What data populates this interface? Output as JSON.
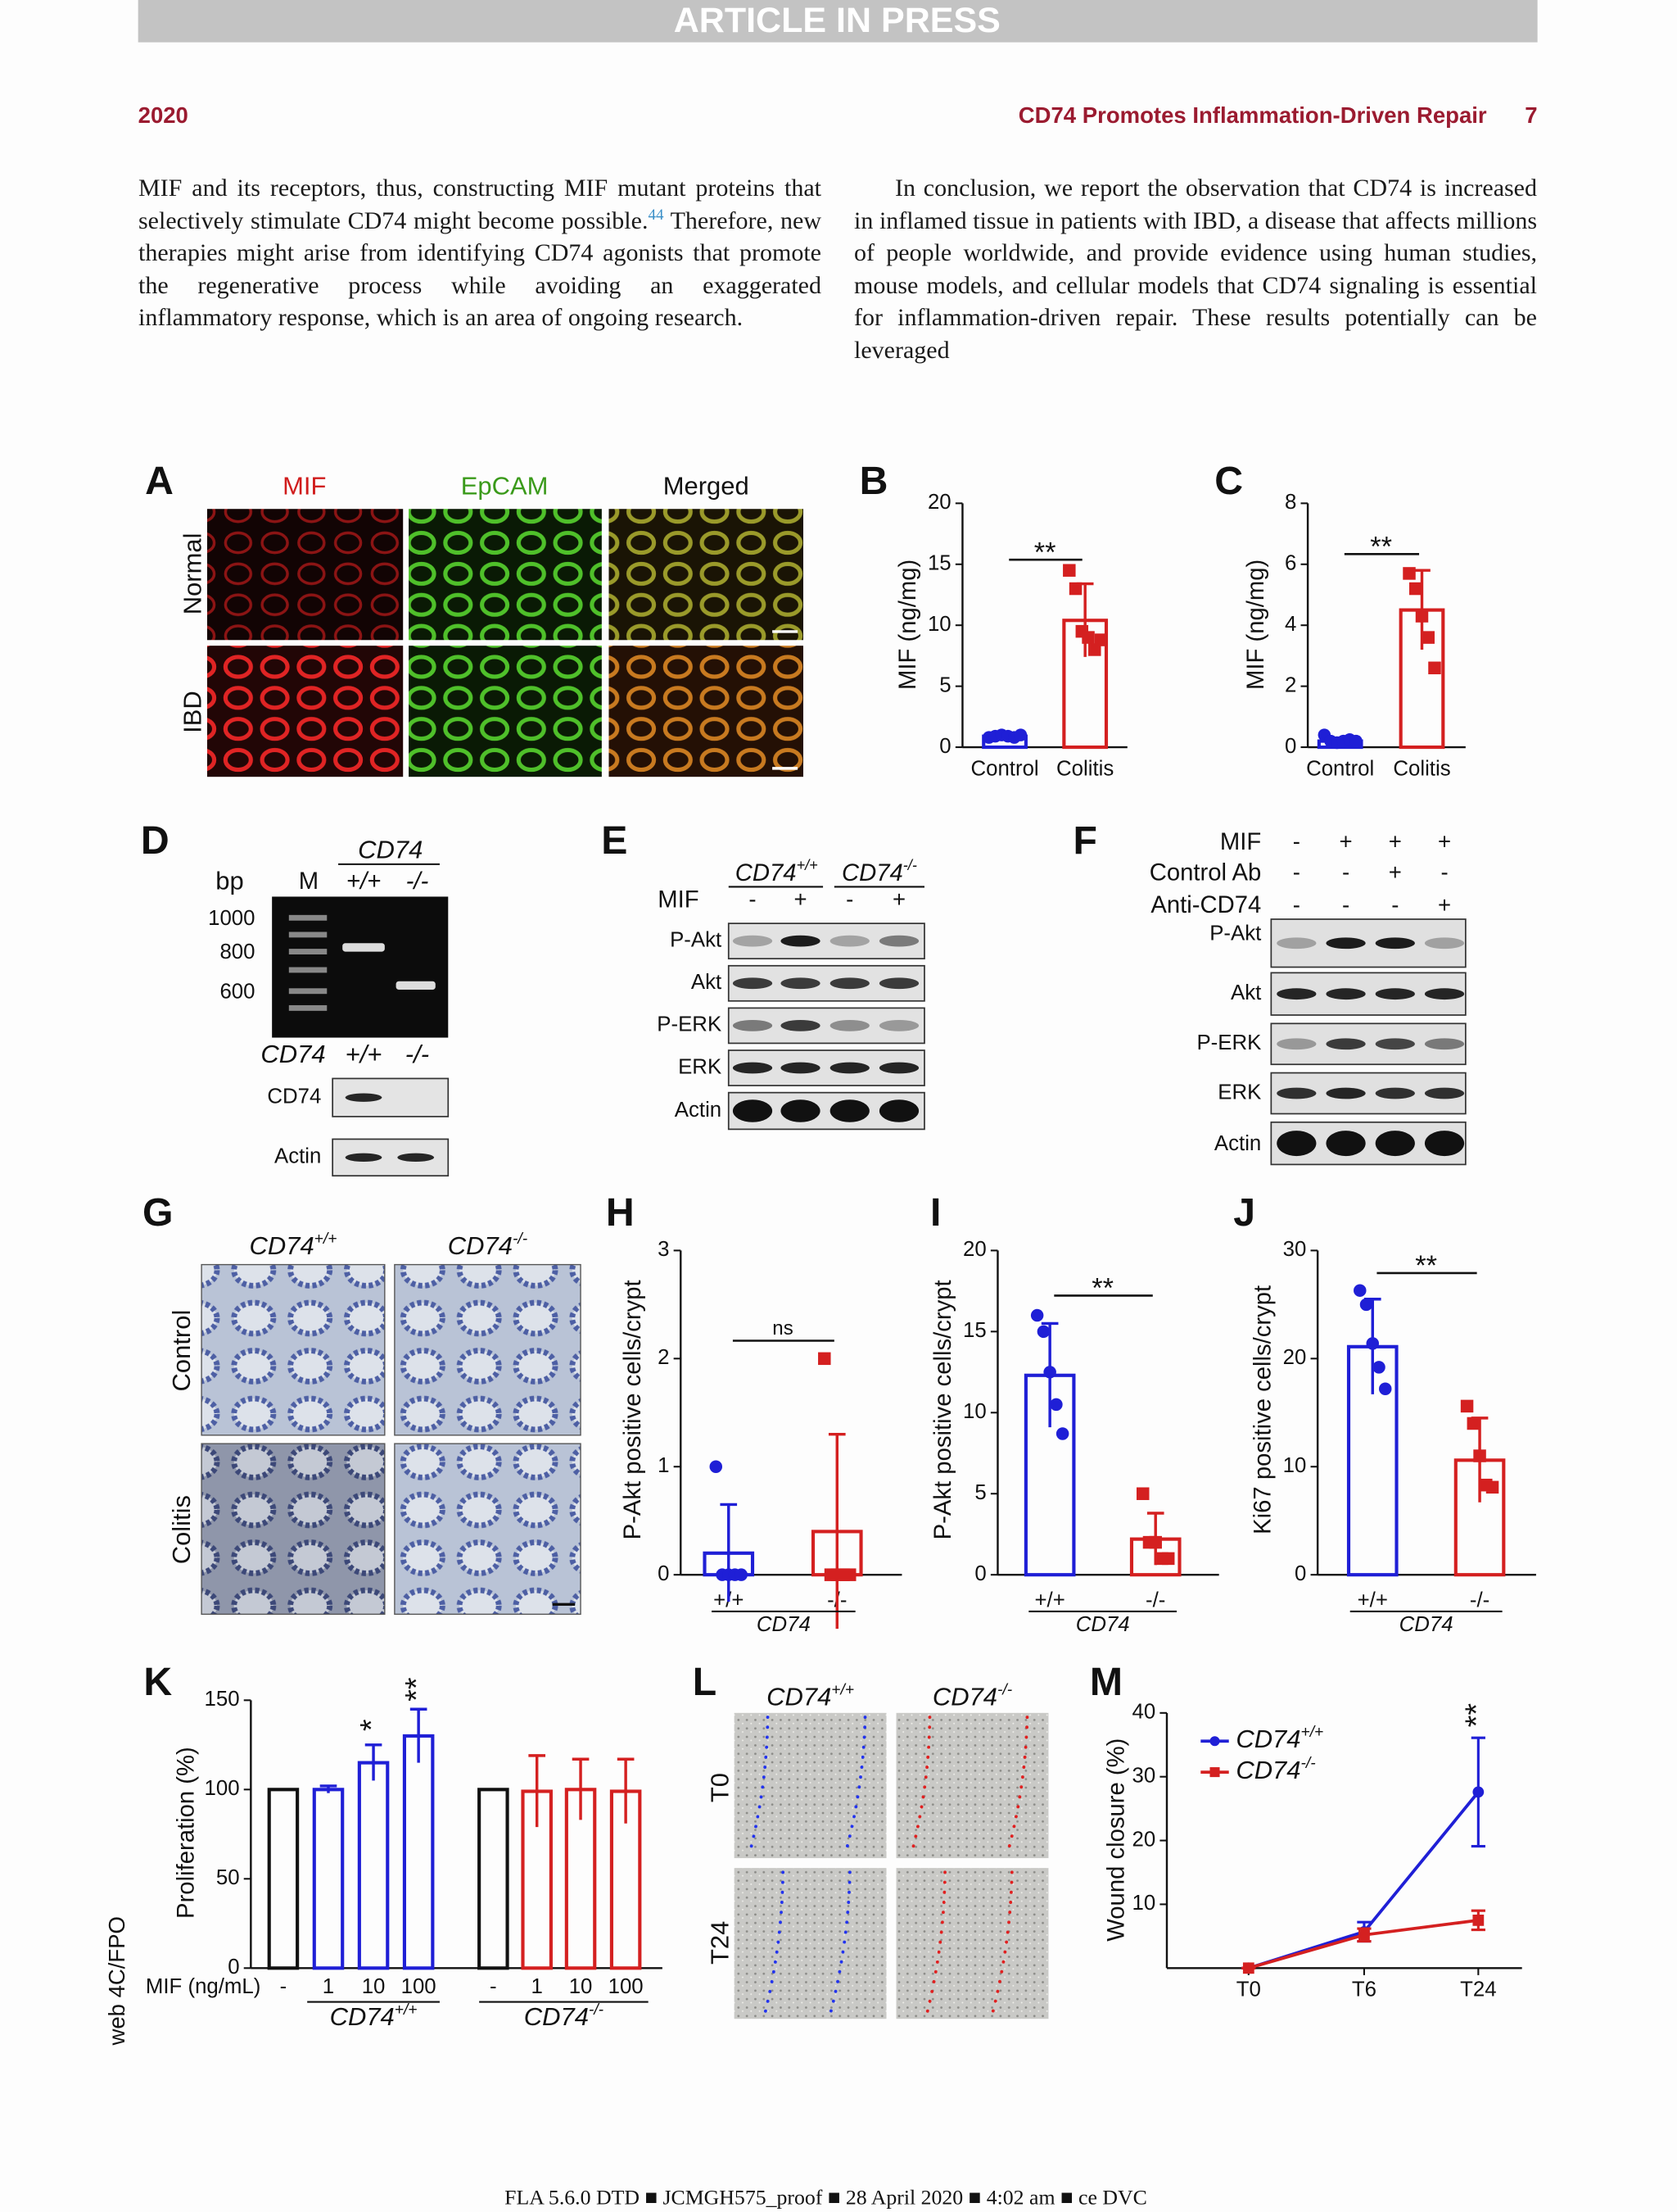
{
  "banner": "ARTICLE IN PRESS",
  "header": {
    "year": "2020",
    "title": "CD74 Promotes Inflammation-Driven Repair",
    "page": "7"
  },
  "text": {
    "left": {
      "before": "MIF and its receptors, thus, constructing MIF mutant proteins that selectively stimulate CD74 might become possible.",
      "ref": "44",
      "after": " Therefore, new therapies might arise from identifying CD74 agonists that promote the regenerative process while avoiding an exaggerated inflammatory response, which is an area of ongoing research."
    },
    "right": "In conclusion, we report the observation that CD74 is increased in inflamed tissue in patients with IBD, a disease that affects millions of people worldwide, and provide evidence using human studies, mouse models, and cellular models that CD74 signaling is essential for inflammation-driven repair. These results potentially can be leveraged"
  },
  "figure": {
    "A": {
      "label": "A",
      "columns": [
        "MIF",
        "EpCAM",
        "Merged"
      ],
      "rows": [
        "Normal",
        "IBD"
      ]
    },
    "D": {
      "label": "D",
      "gene": "CD74",
      "size_unit": "bp",
      "lanes": [
        "M",
        "+/+",
        "-/-"
      ],
      "sizes": [
        1000,
        800,
        600
      ],
      "blot_gene": "CD74",
      "blot_lanes": [
        "+/+",
        "-/-"
      ],
      "blot_rows": [
        "CD74",
        "Actin"
      ]
    },
    "E": {
      "label": "E",
      "genotypes": [
        {
          "gene": "CD74",
          "sup": "+/+"
        },
        {
          "gene": "CD74",
          "sup": "-/-"
        }
      ],
      "treatment": "MIF",
      "lanes": [
        "-",
        "+",
        "-",
        "+"
      ],
      "rows": [
        "P-Akt",
        "Akt",
        "P-ERK",
        "ERK",
        "Actin"
      ]
    },
    "F": {
      "label": "F",
      "conditions": [
        {
          "name": "MIF",
          "lanes": [
            "-",
            "+",
            "+",
            "+"
          ]
        },
        {
          "name": "Control Ab",
          "lanes": [
            "-",
            "-",
            "+",
            "-"
          ]
        },
        {
          "name": "Anti-CD74",
          "lanes": [
            "-",
            "-",
            "-",
            "+"
          ]
        }
      ],
      "rows": [
        "P-Akt",
        "Akt",
        "P-ERK",
        "ERK",
        "Actin"
      ]
    },
    "G": {
      "label": "G",
      "columns": [
        {
          "gene": "CD74",
          "sup": "+/+"
        },
        {
          "gene": "CD74",
          "sup": "-/-"
        }
      ],
      "rows": [
        "Control",
        "Colitis"
      ]
    },
    "L": {
      "label": "L",
      "columns": [
        {
          "gene": "CD74",
          "sup": "+/+"
        },
        {
          "gene": "CD74",
          "sup": "-/-"
        }
      ],
      "rows": [
        "T0",
        "T24"
      ]
    }
  },
  "chart_data": [
    {
      "type": "bar",
      "panel_label": "B",
      "y_label": "MIF (ng/mg)",
      "categories": [
        "Control",
        "Colitis"
      ],
      "values": [
        0.9,
        10.4
      ],
      "errors": [
        0.2,
        3.0
      ],
      "colors": [
        "#1f1fd6",
        "#d42020"
      ],
      "markers": [
        "circle",
        "square"
      ],
      "points": [
        [
          0.8,
          0.9,
          1.0,
          0.9,
          0.8,
          1.0
        ],
        [
          14.5,
          13.0,
          9.5,
          9.0,
          8.0,
          8.8
        ]
      ],
      "ylim": [
        0,
        20
      ],
      "yticks": [
        0,
        5,
        10,
        15,
        20
      ],
      "significance": "**"
    },
    {
      "type": "bar",
      "panel_label": "C",
      "y_label": "MIF (ng/mg)",
      "categories": [
        "Control",
        "Colitis"
      ],
      "values": [
        0.2,
        4.5
      ],
      "errors": [
        0.1,
        1.3
      ],
      "colors": [
        "#1f1fd6",
        "#d42020"
      ],
      "markers": [
        "circle",
        "square"
      ],
      "points": [
        [
          0.4,
          0.2,
          0.15,
          0.2,
          0.25,
          0.2
        ],
        [
          5.7,
          5.2,
          4.3,
          3.6,
          2.6
        ]
      ],
      "ylim": [
        0,
        8
      ],
      "yticks": [
        0,
        2,
        4,
        6,
        8
      ],
      "significance": "**"
    },
    {
      "type": "bar",
      "panel_label": "H",
      "y_label": "P-Akt positive cells/crypt",
      "categories": [
        "+/+",
        "-/-"
      ],
      "group_label": "CD74",
      "values": [
        0.2,
        0.4
      ],
      "errors": [
        0.45,
        0.9
      ],
      "colors": [
        "#1f1fd6",
        "#d42020"
      ],
      "markers": [
        "circle",
        "square"
      ],
      "points": [
        [
          1,
          0,
          0,
          0,
          0
        ],
        [
          2,
          0,
          0,
          0,
          0
        ]
      ],
      "ylim": [
        0,
        3
      ],
      "yticks": [
        0,
        1,
        2,
        3
      ],
      "significance": "ns"
    },
    {
      "type": "bar",
      "panel_label": "I",
      "y_label": "P-Akt positive cells/crypt",
      "categories": [
        "+/+",
        "-/-"
      ],
      "group_label": "CD74",
      "values": [
        12.3,
        2.2
      ],
      "errors": [
        3.2,
        1.6
      ],
      "colors": [
        "#1f1fd6",
        "#d42020"
      ],
      "markers": [
        "circle",
        "square"
      ],
      "points": [
        [
          16,
          15,
          12.5,
          10.5,
          8.7
        ],
        [
          5,
          2,
          2,
          1,
          1
        ]
      ],
      "ylim": [
        0,
        20
      ],
      "yticks": [
        0,
        5,
        10,
        15,
        20
      ],
      "significance": "**"
    },
    {
      "type": "bar",
      "panel_label": "J",
      "y_label": "Ki67 positive cells/crypt",
      "categories": [
        "+/+",
        "-/-"
      ],
      "group_label": "CD74",
      "values": [
        21.1,
        10.6
      ],
      "errors": [
        4.4,
        3.9
      ],
      "colors": [
        "#1f1fd6",
        "#d42020"
      ],
      "markers": [
        "circle",
        "square"
      ],
      "points": [
        [
          26.3,
          25,
          21.4,
          19.2,
          17.2
        ],
        [
          15.6,
          14,
          11,
          8.3,
          8.1
        ]
      ],
      "ylim": [
        0,
        30
      ],
      "yticks": [
        0,
        10,
        20,
        30
      ],
      "significance": "**"
    },
    {
      "type": "bar",
      "panel_label": "K",
      "y_label": "Proliferation (%)",
      "x_label": "MIF (ng/mL)",
      "categories": [
        "-",
        "1",
        "10",
        "100",
        "-",
        "1",
        "10",
        "100"
      ],
      "groups": [
        {
          "gene": "CD74",
          "sup": "+/+"
        },
        {
          "gene": "CD74",
          "sup": "-/-"
        }
      ],
      "values": [
        100,
        100,
        115,
        130,
        100,
        99,
        100,
        99
      ],
      "errors": [
        0,
        2,
        10,
        15,
        0,
        20,
        17,
        18
      ],
      "colors": [
        "#111111",
        "#1f1fd6",
        "#1f1fd6",
        "#1f1fd6",
        "#111111",
        "#d42020",
        "#d42020",
        "#d42020"
      ],
      "annotations": [
        null,
        null,
        "*",
        "**",
        null,
        null,
        null,
        null
      ],
      "ylim": [
        0,
        150
      ],
      "yticks": [
        0,
        50,
        100,
        150
      ]
    },
    {
      "type": "line",
      "panel_label": "M",
      "y_label": "Wound closure (%)",
      "categories": [
        "T0",
        "T6",
        "T24"
      ],
      "series": [
        {
          "name": "CD74",
          "sup": "+/+",
          "color": "#1f1fd6",
          "marker": "circle",
          "values": [
            0,
            5.7,
            27.6
          ],
          "errors": [
            0,
            1.5,
            8.5
          ]
        },
        {
          "name": "CD74",
          "sup": "-/-",
          "color": "#d42020",
          "marker": "square",
          "values": [
            0,
            5.2,
            7.5
          ],
          "errors": [
            0,
            1.0,
            1.5
          ]
        }
      ],
      "annotation": "**",
      "ylim": [
        0,
        40
      ],
      "yticks": [
        10,
        20,
        30,
        40
      ]
    }
  ],
  "side_label": "web 4C/FPO",
  "footer": "FLA 5.6.0 DTD ■ JCMGH575_proof ■ 28 April 2020 ■ 4:02 am ■ ce DVC"
}
